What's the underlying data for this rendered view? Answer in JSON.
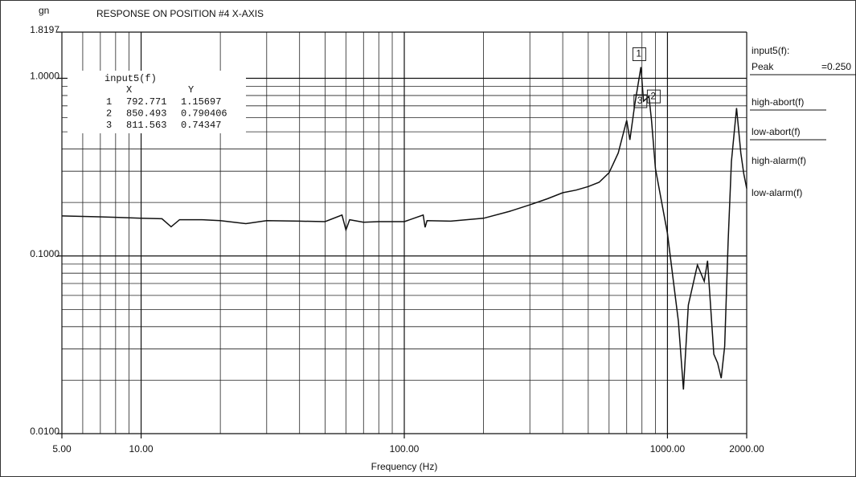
{
  "chart_data": {
    "type": "line",
    "title": "RESPONSE ON POSITION #4  X-AXIS",
    "ylabel": "gn",
    "xlabel": "Frequency (Hz)",
    "xscale": "log",
    "yscale": "log",
    "grid": true,
    "xlim": [
      5,
      2000
    ],
    "ylim": [
      0.01,
      1.8197
    ],
    "xticks": [
      {
        "value": 5,
        "label": "5.00"
      },
      {
        "value": 10,
        "label": "10.00"
      },
      {
        "value": 100,
        "label": "100.00"
      },
      {
        "value": 1000,
        "label": "1000.00"
      },
      {
        "value": 2000,
        "label": "2000.00"
      }
    ],
    "yticks": [
      {
        "value": 0.01,
        "label": "0.0100"
      },
      {
        "value": 0.1,
        "label": "0.1000"
      },
      {
        "value": 1,
        "label": "1.0000"
      },
      1.8197
    ],
    "xminor": [
      6,
      7,
      8,
      9,
      20,
      30,
      40,
      50,
      60,
      70,
      80,
      90,
      200,
      300,
      400,
      500,
      600,
      700,
      800,
      900
    ],
    "yminor": [
      0.02,
      0.03,
      0.04,
      0.05,
      0.06,
      0.07,
      0.08,
      0.09,
      0.2,
      0.3,
      0.4,
      0.5,
      0.6,
      0.7,
      0.8,
      0.9
    ],
    "x": [
      5,
      6,
      8,
      10,
      12,
      13,
      14,
      17,
      20,
      25,
      30,
      40,
      50,
      58,
      60,
      62,
      70,
      80,
      100,
      118,
      120,
      122,
      150,
      200,
      250,
      300,
      350,
      400,
      450,
      500,
      550,
      600,
      650,
      700,
      720,
      750,
      792.771,
      811.563,
      850.493,
      870,
      900,
      1000,
      1100,
      1150,
      1200,
      1300,
      1380,
      1420,
      1500,
      1550,
      1600,
      1650,
      1700,
      1750,
      1830,
      1900,
      1950,
      2000
    ],
    "series": [
      {
        "name": "input5(f)",
        "color": "#111111",
        "values": [
          0.168,
          0.167,
          0.165,
          0.163,
          0.162,
          0.146,
          0.16,
          0.16,
          0.158,
          0.152,
          0.158,
          0.157,
          0.156,
          0.17,
          0.14,
          0.16,
          0.155,
          0.156,
          0.156,
          0.17,
          0.145,
          0.158,
          0.157,
          0.163,
          0.178,
          0.194,
          0.21,
          0.227,
          0.235,
          0.246,
          0.26,
          0.294,
          0.38,
          0.58,
          0.45,
          0.7,
          1.15697,
          0.74347,
          0.790406,
          0.58,
          0.31,
          0.134,
          0.043,
          0.0177,
          0.053,
          0.089,
          0.072,
          0.094,
          0.028,
          0.025,
          0.0205,
          0.031,
          0.12,
          0.34,
          0.68,
          0.38,
          0.29,
          0.24
        ]
      }
    ],
    "cursor_table": {
      "title": "input5(f)",
      "headers": [
        "X",
        "Y"
      ],
      "rows": [
        [
          1,
          792.771,
          1.15697
        ],
        [
          2,
          850.493,
          0.790406
        ],
        [
          3,
          811.563,
          0.74347
        ]
      ]
    },
    "side_labels": {
      "heading": "input5(f):",
      "peak": "Peak",
      "peak_value": "=0.250",
      "items": [
        "high-abort(f)",
        "low-abort(f)",
        "high-alarm(f)",
        "low-alarm(f)"
      ]
    }
  }
}
